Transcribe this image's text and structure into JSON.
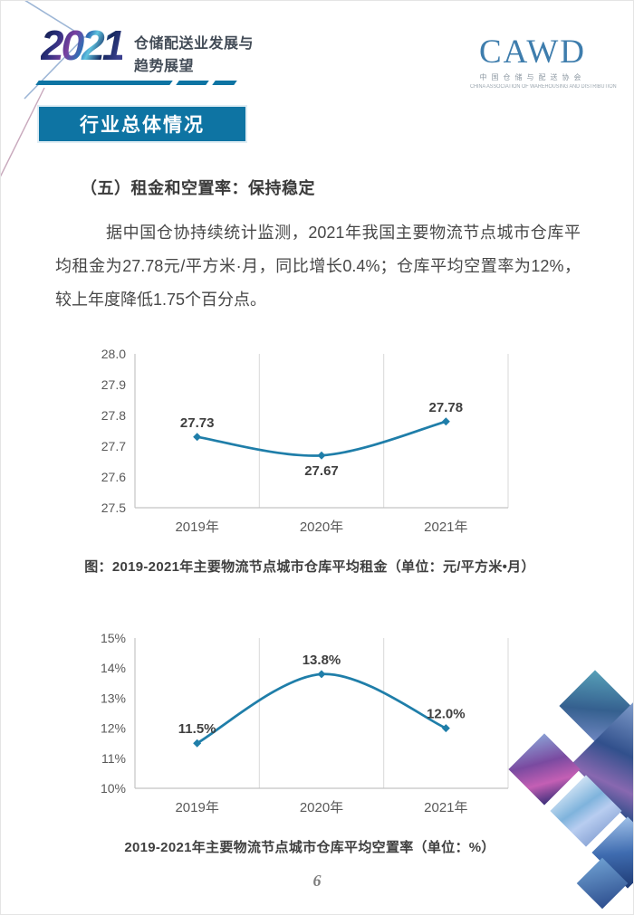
{
  "page": {
    "number": "6"
  },
  "header": {
    "year_logo": "2021",
    "title_line1": "仓储配送业发展与",
    "title_line2": "趋势展望",
    "cawd_logo": {
      "acronym": "CAWD",
      "name_cn": "中国仓储与配送协会",
      "name_en": "CHINA ASSOCIATION OF WAREHOUSING AND DISTRIBUTION"
    }
  },
  "banner": {
    "label": "行业总体情况"
  },
  "section": {
    "heading": "（五）租金和空置率：保持稳定",
    "paragraph": "据中国仓协持续统计监测，2021年我国主要物流节点城市仓库平均租金为27.78元/平方米·月，同比增长0.4%；仓库平均空置率为12%，较上年度降低1.75个百分点。"
  },
  "colors": {
    "accent_blue": "#0E74A3",
    "chart_line": "#1F7EA9",
    "data_label": "#3F3F3F",
    "axis_label": "#595959",
    "gridline": "#D9D9D9",
    "axis_line": "#C4C4C4"
  },
  "chart_data": [
    {
      "type": "line",
      "title": "",
      "caption": "图：2019-2021年主要物流节点城市仓库平均租金（单位：元/平方米•月）",
      "categories": [
        "2019年",
        "2020年",
        "2021年"
      ],
      "values": [
        27.73,
        27.67,
        27.78
      ],
      "point_labels": [
        "27.73",
        "27.67",
        "27.78"
      ],
      "label_positions": [
        "above",
        "below",
        "above"
      ],
      "xlabel": "",
      "ylabel": "",
      "ylim": [
        27.5,
        28.0
      ],
      "y_ticks": [
        28.0,
        27.9,
        27.8,
        27.7,
        27.6,
        27.5
      ],
      "y_tick_labels": [
        "28.0",
        "27.9",
        "27.8",
        "27.7",
        "27.6",
        "27.5"
      ],
      "grid": "vertical-between-categories",
      "legend": "none",
      "marker": "diamond",
      "smooth": true,
      "line_color": "#1F7EA9"
    },
    {
      "type": "line",
      "title": "",
      "caption": "2019-2021年主要物流节点城市仓库平均空置率（单位：%）",
      "categories": [
        "2019年",
        "2020年",
        "2021年"
      ],
      "values": [
        11.5,
        13.8,
        12.0
      ],
      "point_labels": [
        "11.5%",
        "13.8%",
        "12.0%"
      ],
      "label_positions": [
        "above",
        "above",
        "above"
      ],
      "xlabel": "",
      "ylabel": "",
      "ylim": [
        10,
        15
      ],
      "y_ticks": [
        15,
        14,
        13,
        12,
        11,
        10
      ],
      "y_tick_labels": [
        "15%",
        "14%",
        "13%",
        "12%",
        "11%",
        "10%"
      ],
      "grid": "vertical-between-categories",
      "legend": "none",
      "marker": "diamond",
      "smooth": true,
      "line_color": "#1F7EA9"
    }
  ]
}
